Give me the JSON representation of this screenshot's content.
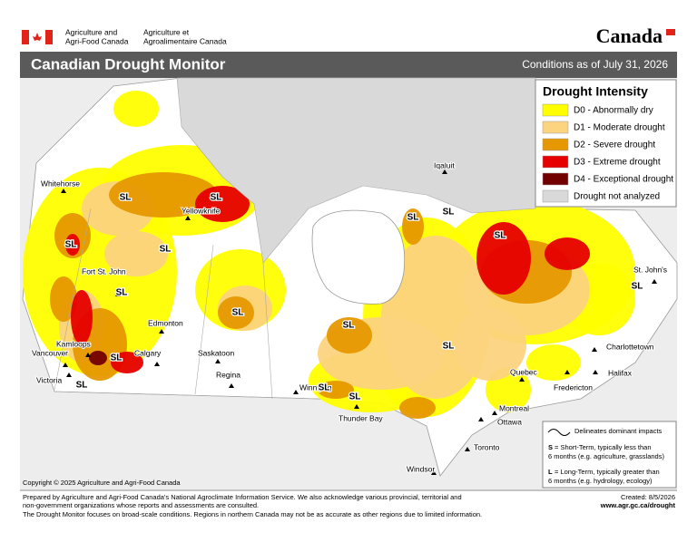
{
  "header": {
    "dept_en": [
      "Agriculture and",
      "Agri-Food Canada"
    ],
    "dept_fr": [
      "Agriculture et",
      "Agroalimentaire Canada"
    ],
    "wordmark": "Canada"
  },
  "title_bar": {
    "title": "Canadian Drought Monitor",
    "conditions": "Conditions as of July 31, 2026"
  },
  "legend": {
    "title": "Drought Intensity",
    "items": [
      {
        "label": "D0 - Abnormally dry",
        "color": "#ffff00"
      },
      {
        "label": "D1 - Moderate drought",
        "color": "#fcd37f"
      },
      {
        "label": "D2 - Severe drought",
        "color": "#e69800"
      },
      {
        "label": "D3 - Extreme drought",
        "color": "#e60000"
      },
      {
        "label": "D4 - Exceptional drought",
        "color": "#730000"
      },
      {
        "label": "Drought not analyzed",
        "color": "#d9d9d9"
      }
    ]
  },
  "cities": [
    "Whitehorse",
    "Yellowknife",
    "Iqaluit",
    "Fort St. John",
    "Edmonton",
    "Kamloops",
    "Calgary",
    "Vancouver",
    "Victoria",
    "Saskatoon",
    "Regina",
    "Winnipeg",
    "Thunder Bay",
    "Quebec",
    "Montreal",
    "Ottawa",
    "Toronto",
    "Windsor",
    "Fredericton",
    "Charlottetown",
    "Halifax",
    "St. John's"
  ],
  "impact_labels": [
    "SL",
    "SL",
    "SL",
    "SL",
    "SL",
    "SL",
    "SL",
    "SL",
    "SL",
    "SL",
    "SL",
    "SL",
    "SL",
    "SL",
    "SL",
    "SL"
  ],
  "impacts_note": {
    "symbol_text": "Delineates dominant impacts",
    "short_key": "S",
    "short_text": [
      "= Short-Term, typically less than",
      "6 months (e.g. agriculture, grasslands)"
    ],
    "long_key": "L",
    "long_text": [
      "= Long-Term, typically greater  than",
      "6 months (e.g. hydrology, ecology)"
    ]
  },
  "copyright": "Copyright © 2025 Agriculture and Agri-Food Canada",
  "footer": {
    "lines": [
      "Prepared by Agriculture and Agri-Food Canada's National Agroclimate Information Service.  We also acknowledge various provincial, territorial and",
      "non-government organizations whose reports and assessments are consulted.",
      "The Drought Monitor focuses on broad-scale conditions.  Regions in northern Canada may not be as accurate as other regions due to limited information."
    ],
    "created": "Created: 8/5/2026",
    "url": "www.agr.gc.ca/drought"
  }
}
